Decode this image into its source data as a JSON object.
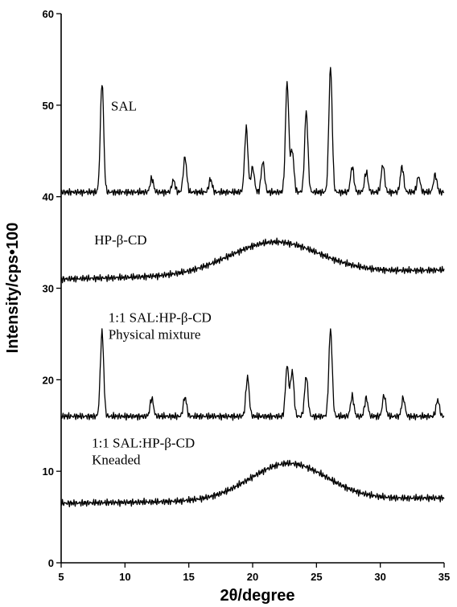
{
  "chart_data": {
    "type": "line",
    "title": "",
    "xlabel": "2θ/degree",
    "ylabel": "Intensity/cps•100",
    "xlim": [
      5,
      35
    ],
    "ylim": [
      0,
      60
    ],
    "x_ticks": [
      5,
      10,
      15,
      20,
      25,
      30,
      35
    ],
    "y_ticks": [
      0,
      10,
      20,
      30,
      40,
      50,
      60
    ],
    "grid": false,
    "legend": "none",
    "series": [
      {
        "name": "SAL",
        "label_lines": [
          "SAL"
        ],
        "baseline": 40.5,
        "peaks": [
          [
            8.2,
            52.5
          ],
          [
            12.1,
            42.0
          ],
          [
            13.8,
            41.8
          ],
          [
            14.7,
            44.3
          ],
          [
            16.7,
            41.9
          ],
          [
            19.5,
            47.5
          ],
          [
            20.0,
            43.2
          ],
          [
            20.8,
            43.8
          ],
          [
            22.7,
            52.5
          ],
          [
            23.1,
            45.0
          ],
          [
            24.2,
            49.3
          ],
          [
            26.1,
            54.1
          ],
          [
            27.8,
            43.3
          ],
          [
            28.9,
            42.7
          ],
          [
            30.2,
            43.5
          ],
          [
            31.7,
            43.3
          ],
          [
            33.0,
            42.2
          ],
          [
            34.3,
            42.4
          ]
        ]
      },
      {
        "name": "HP-β-CD",
        "label_lines": [
          "HP-β-CD"
        ],
        "baseline": 31.0,
        "halo": {
          "center": 21.7,
          "height": 3.5,
          "width": 3.5,
          "tail": 1.2
        },
        "end_value": 32.0
      },
      {
        "name": "1:1 SAL:HP-β-CD Physical mixture",
        "label_lines": [
          "1:1 SAL:HP-β-CD",
          "Physical mixture"
        ],
        "baseline": 16.0,
        "peaks": [
          [
            8.2,
            25.2
          ],
          [
            12.1,
            18.0
          ],
          [
            14.7,
            18.1
          ],
          [
            19.6,
            20.3
          ],
          [
            22.7,
            21.5
          ],
          [
            23.1,
            20.9
          ],
          [
            24.2,
            20.4
          ],
          [
            26.1,
            25.5
          ],
          [
            27.8,
            18.2
          ],
          [
            28.9,
            18.0
          ],
          [
            30.3,
            18.3
          ],
          [
            31.8,
            18.0
          ],
          [
            34.5,
            17.8
          ]
        ]
      },
      {
        "name": "1:1 SAL:HP-β-CD Kneaded",
        "label_lines": [
          "1:1 SAL:HP-β-CD",
          "Kneaded"
        ],
        "baseline": 6.5,
        "halo": {
          "center": 22.8,
          "height": 4.0,
          "width": 3.0,
          "tail": 1.0
        },
        "end_value": 7.1
      }
    ]
  }
}
